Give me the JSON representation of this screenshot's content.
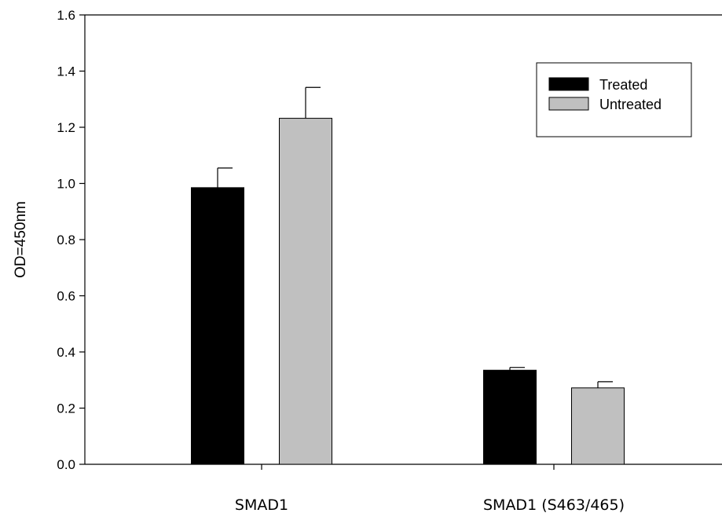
{
  "chart_data": {
    "type": "bar",
    "title": "",
    "xlabel": "",
    "ylabel": "OD=450nm",
    "ylim": [
      0,
      1.6
    ],
    "yticks": [
      "0.0",
      "0.2",
      "0.4",
      "0.6",
      "0.8",
      "1.0",
      "1.2",
      "1.4",
      "1.6"
    ],
    "grid": false,
    "legend_position": "top-right",
    "categories": [
      "SMAD1",
      "SMAD1 (S463/465)"
    ],
    "series": [
      {
        "name": "Treated",
        "color": "#000000",
        "values": [
          0.985,
          0.335
        ],
        "errors": [
          0.07,
          0.01
        ]
      },
      {
        "name": "Untreated",
        "color": "#c0c0c0",
        "values": [
          1.232,
          0.272
        ],
        "errors": [
          0.11,
          0.022
        ]
      }
    ]
  }
}
